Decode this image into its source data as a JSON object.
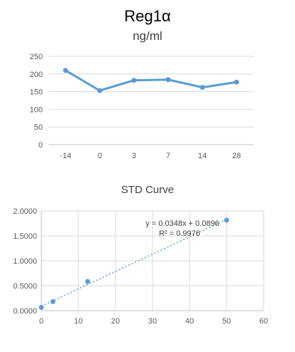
{
  "chart_data": [
    {
      "type": "line",
      "title": "Reg1α",
      "subtitle": "ng/ml",
      "categories": [
        "-14",
        "0",
        "3",
        "7",
        "14",
        "28"
      ],
      "series": [
        {
          "values": [
            210,
            153,
            182,
            184,
            162,
            177
          ]
        }
      ],
      "ylim": [
        0,
        250
      ],
      "yticks": [
        "0",
        "50",
        "100",
        "150",
        "200",
        "250"
      ],
      "grid": true,
      "legend": "none",
      "color": "#5b9bd5"
    },
    {
      "type": "scatter",
      "title": "STD Curve",
      "x": [
        0,
        3.125,
        12.5,
        50
      ],
      "y": [
        0.0652,
        0.181,
        0.5846,
        1.8147
      ],
      "xlim": [
        0,
        60
      ],
      "ylim": [
        0,
        2
      ],
      "xticks": [
        "0",
        "10",
        "20",
        "30",
        "40",
        "50",
        "60"
      ],
      "yticks": [
        "0.0000",
        "0.5000",
        "1.0000",
        "1.5000",
        "2.0000"
      ],
      "trendline": {
        "slope": 0.0348,
        "intercept": 0.0896,
        "equation": "y = 0.0348x + 0.0896",
        "r2": "R² = 0.9976"
      },
      "grid": true,
      "legend": "none",
      "color": "#5b9bd5"
    }
  ]
}
